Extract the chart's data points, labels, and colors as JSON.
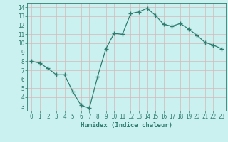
{
  "x": [
    0,
    1,
    2,
    3,
    4,
    5,
    6,
    7,
    8,
    9,
    10,
    11,
    12,
    13,
    14,
    15,
    16,
    17,
    18,
    19,
    20,
    21,
    22,
    23
  ],
  "y": [
    8.0,
    7.8,
    7.2,
    6.5,
    6.5,
    4.6,
    3.1,
    2.8,
    6.3,
    9.4,
    11.1,
    11.0,
    13.3,
    13.5,
    13.9,
    13.1,
    12.1,
    11.9,
    12.2,
    11.6,
    10.9,
    10.1,
    9.8,
    9.4
  ],
  "line_color": "#2e7d6e",
  "bg_color": "#cbf0f0",
  "grid_color": "#d4b8b8",
  "xlabel": "Humidex (Indice chaleur)",
  "xlim": [
    -0.5,
    23.5
  ],
  "ylim": [
    2.5,
    14.5
  ],
  "yticks": [
    3,
    4,
    5,
    6,
    7,
    8,
    9,
    10,
    11,
    12,
    13,
    14
  ],
  "xticks": [
    0,
    1,
    2,
    3,
    4,
    5,
    6,
    7,
    8,
    9,
    10,
    11,
    12,
    13,
    14,
    15,
    16,
    17,
    18,
    19,
    20,
    21,
    22,
    23
  ]
}
